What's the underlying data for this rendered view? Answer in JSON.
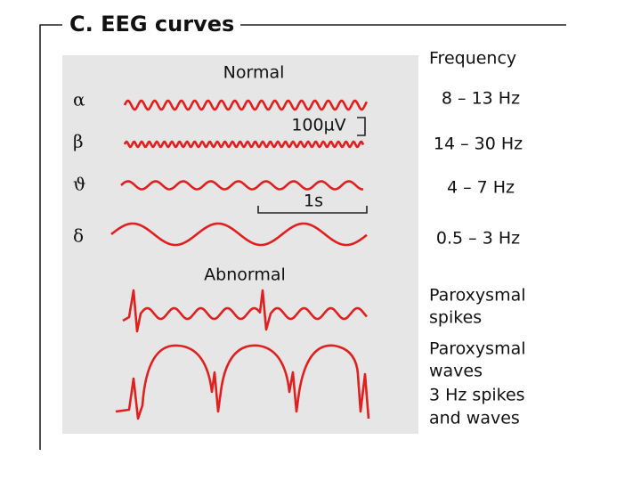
{
  "title": "C.  EEG curves",
  "normal_label": "Normal",
  "abnormal_label": "Abnormal",
  "frequency_header": "Frequency",
  "scale_voltage": "100µV",
  "scale_time": "1s",
  "rows": [
    {
      "symbol": "α",
      "frequency": "8 – 13 Hz"
    },
    {
      "symbol": "β",
      "frequency": "14 – 30 Hz"
    },
    {
      "symbol": "ϑ",
      "frequency": "4 – 7 Hz"
    },
    {
      "symbol": "δ",
      "frequency": "0.5 – 3 Hz"
    }
  ],
  "abnormal_rows": [
    {
      "lines": [
        "Paroxysmal",
        "spikes"
      ]
    },
    {
      "lines": [
        "Paroxysmal",
        "waves"
      ]
    },
    {
      "lines": [
        "3 Hz spikes",
        "and waves"
      ]
    }
  ]
}
